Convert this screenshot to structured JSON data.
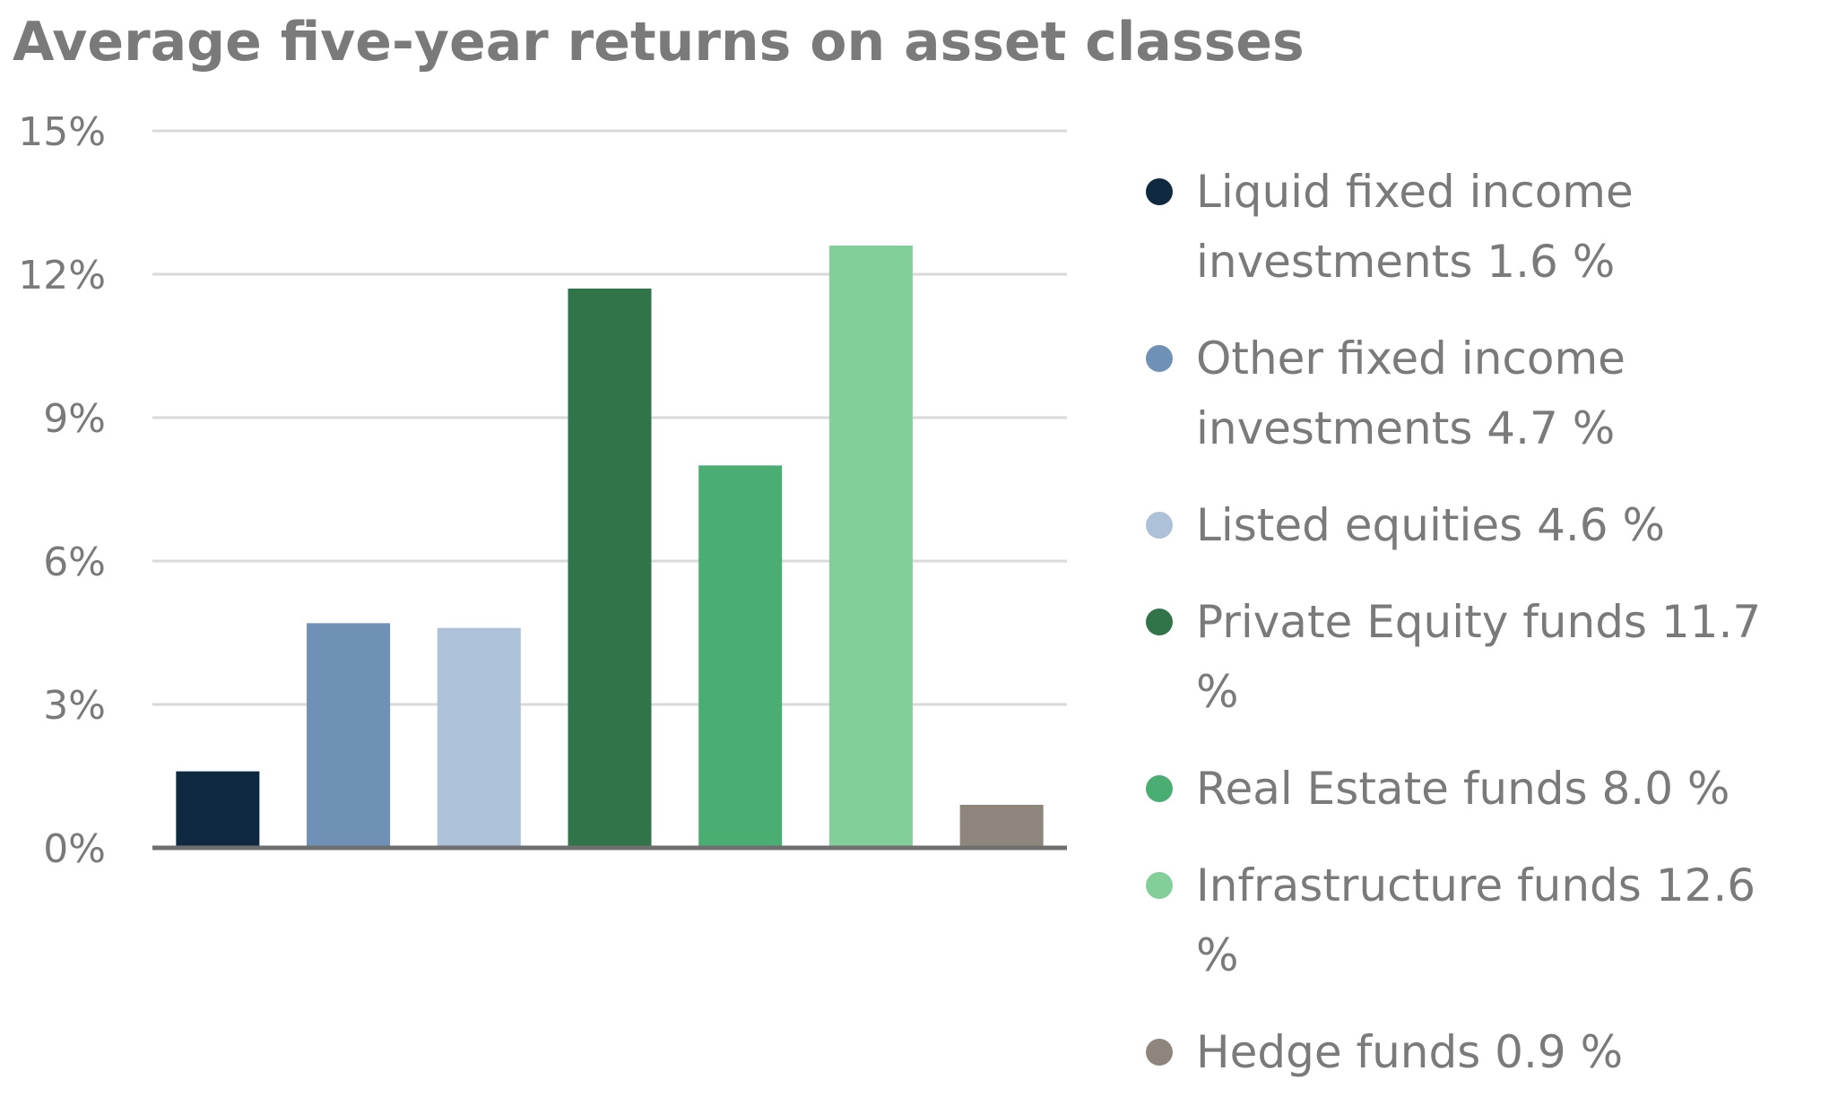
{
  "chart_data": {
    "type": "bar",
    "title": "Average five-year returns on asset classes",
    "xlabel": "",
    "ylabel": "",
    "ylim": [
      0,
      15
    ],
    "y_ticks": [
      "0%",
      "3%",
      "6%",
      "9%",
      "12%",
      "15%"
    ],
    "y_tick_values": [
      0,
      3,
      6,
      9,
      12,
      15
    ],
    "grid": true,
    "legend_position": "right",
    "categories": [
      "Liquid fixed income investments",
      "Other fixed income investments",
      "Listed equities",
      "Private Equity funds",
      "Real Estate funds",
      "Infrastructure funds",
      "Hedge funds"
    ],
    "values": [
      1.6,
      4.7,
      4.6,
      11.7,
      8.0,
      12.6,
      0.9
    ],
    "colors": [
      "#0f2a40",
      "#6f91b5",
      "#adc1d8",
      "#317449",
      "#4aae73",
      "#82cf99",
      "#8e857c"
    ],
    "legend_labels": [
      "Liquid fixed income investments 1.6 %",
      "Other fixed income investments 4.7 %",
      "Listed equities 4.6 %",
      "Private Equity funds 11.7 %",
      "Real Estate funds 8.0 %",
      "Infrastructure funds 12.6 %",
      "Hedge funds 0.9 %"
    ]
  }
}
